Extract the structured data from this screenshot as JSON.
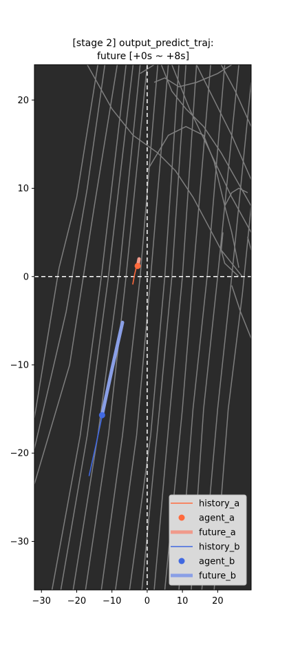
{
  "chart_data": {
    "type": "line",
    "title_line1": "[stage 2] output_predict_traj:",
    "title_line2": "future [+0s ~ +8s]",
    "xlim": [
      -32,
      29.5
    ],
    "ylim": [
      -35.5,
      24
    ],
    "xticks": [
      -30,
      -20,
      -10,
      0,
      10,
      20
    ],
    "yticks": [
      20,
      10,
      0,
      -10,
      -20,
      -30
    ],
    "background_color": "#2b2b2b",
    "lane_color": "#7f7f7f",
    "crosshair": {
      "x": 0,
      "y": 0,
      "color": "#ffffff"
    },
    "legend_position": "lower-right",
    "lanes": [
      [
        [
          -32,
          -16
        ],
        [
          -25,
          1
        ],
        [
          -20,
          9
        ],
        [
          -14,
          24
        ]
      ],
      [
        [
          -32,
          -19.5
        ],
        [
          -23,
          -4
        ],
        [
          -17,
          10
        ],
        [
          -12,
          24
        ]
      ],
      [
        [
          -32,
          -23.5
        ],
        [
          -22,
          -10
        ],
        [
          -15,
          8
        ],
        [
          -8.5,
          24
        ]
      ],
      [
        [
          -27,
          -35.5
        ],
        [
          -19,
          -18
        ],
        [
          -13,
          0
        ],
        [
          -6,
          24
        ]
      ],
      [
        [
          -24.5,
          -35.5
        ],
        [
          -17,
          -18
        ],
        [
          -11,
          0
        ],
        [
          -4,
          24
        ]
      ],
      [
        [
          -21,
          -35.5
        ],
        [
          -14,
          -18
        ],
        [
          -8,
          0
        ],
        [
          -2,
          24
        ]
      ],
      [
        [
          -17.5,
          -35.5
        ],
        [
          -11,
          -18
        ],
        [
          -6,
          0
        ],
        [
          0,
          24
        ]
      ],
      [
        [
          -13,
          -35.5
        ],
        [
          -7,
          -18
        ],
        [
          -2,
          0
        ],
        [
          3,
          24
        ]
      ],
      [
        [
          -9,
          -35.5
        ],
        [
          -3,
          -18
        ],
        [
          1,
          0
        ],
        [
          6,
          24
        ]
      ],
      [
        [
          -5,
          -35.5
        ],
        [
          1,
          -18
        ],
        [
          5,
          0
        ],
        [
          9,
          24
        ]
      ],
      [
        [
          -1.5,
          -35.5
        ],
        [
          3.5,
          -15
        ],
        [
          7,
          0
        ],
        [
          11,
          24
        ]
      ],
      [
        [
          2,
          -35.5
        ],
        [
          6.5,
          -15
        ],
        [
          10,
          0
        ],
        [
          14,
          24
        ]
      ],
      [
        [
          5,
          -35.5
        ],
        [
          10,
          -15
        ],
        [
          13,
          0
        ],
        [
          18,
          24
        ]
      ],
      [
        [
          9,
          -35.5
        ],
        [
          13,
          -15
        ],
        [
          17,
          0
        ],
        [
          22,
          24
        ]
      ],
      [
        [
          12.5,
          -35.5
        ],
        [
          16,
          -15
        ],
        [
          20,
          0
        ],
        [
          26,
          24
        ]
      ],
      [
        [
          15.5,
          -35.5
        ],
        [
          20,
          -15
        ],
        [
          24,
          0
        ],
        [
          29.5,
          22
        ]
      ],
      [
        [
          19,
          -35.5
        ],
        [
          23,
          -15
        ],
        [
          27,
          -2
        ],
        [
          29.5,
          8
        ]
      ],
      [
        [
          0,
          12
        ],
        [
          6,
          16
        ],
        [
          11,
          17
        ],
        [
          16,
          16
        ],
        [
          19,
          13
        ],
        [
          22,
          8
        ],
        [
          24,
          5
        ],
        [
          25,
          3
        ],
        [
          26,
          1
        ]
      ],
      [
        [
          -17,
          24
        ],
        [
          -10,
          19
        ],
        [
          -4,
          16
        ],
        [
          3,
          14
        ],
        [
          8,
          12
        ],
        [
          13,
          9
        ],
        [
          17,
          6
        ],
        [
          21,
          3
        ],
        [
          27,
          0
        ]
      ],
      [
        [
          -2,
          23
        ],
        [
          2,
          24
        ]
      ],
      [
        [
          2,
          22
        ],
        [
          5,
          22.5
        ],
        [
          9,
          21.5
        ],
        [
          14,
          22
        ],
        [
          20,
          23
        ],
        [
          24,
          24
        ]
      ],
      [
        [
          7,
          24
        ],
        [
          12,
          19
        ],
        [
          18,
          14
        ],
        [
          24,
          9
        ],
        [
          29.5,
          5
        ]
      ],
      [
        [
          14,
          24
        ],
        [
          19,
          20
        ],
        [
          24,
          16
        ],
        [
          29.5,
          11
        ]
      ],
      [
        [
          21,
          24
        ],
        [
          25,
          21
        ],
        [
          29.5,
          17
        ]
      ],
      [
        [
          4,
          24
        ],
        [
          7,
          21
        ],
        [
          11,
          19
        ],
        [
          16,
          17
        ],
        [
          21,
          14
        ],
        [
          29.5,
          8
        ]
      ],
      [
        [
          22,
          8
        ],
        [
          24,
          9.5
        ],
        [
          26,
          10
        ],
        [
          28.5,
          9.5
        ]
      ],
      [
        [
          21.5,
          5
        ],
        [
          21,
          3
        ],
        [
          22,
          1.5
        ],
        [
          26,
          0
        ]
      ],
      [
        [
          24,
          -1
        ],
        [
          26.5,
          -4
        ],
        [
          29.5,
          -7
        ]
      ],
      [
        [
          28.5,
          4.5
        ],
        [
          29.5,
          3
        ]
      ]
    ],
    "series": [
      {
        "name": "history_a",
        "kind": "history",
        "color": "#ff6a3d",
        "points": [
          [
            -4.1,
            -0.9
          ],
          [
            -3.6,
            0.2
          ],
          [
            -3.0,
            1.2
          ]
        ]
      },
      {
        "name": "agent_a",
        "kind": "agent",
        "color": "#ff6a3d",
        "point": [
          -2.7,
          1.2
        ]
      },
      {
        "name": "future_a",
        "kind": "future",
        "color": "#f09a8b",
        "points": [
          [
            -2.7,
            1.2
          ],
          [
            -2.5,
            1.6
          ],
          [
            -2.3,
            2.0
          ]
        ]
      },
      {
        "name": "history_b",
        "kind": "history",
        "color": "#4169e1",
        "points": [
          [
            -16.5,
            -22.6
          ],
          [
            -14.6,
            -19.2
          ],
          [
            -12.8,
            -15.8
          ]
        ]
      },
      {
        "name": "agent_b",
        "kind": "agent",
        "color": "#4169e1",
        "point": [
          -12.8,
          -15.7
        ]
      },
      {
        "name": "future_b",
        "kind": "future",
        "color": "#8a9fe6",
        "points": [
          [
            -12.8,
            -15.7
          ],
          [
            -10.0,
            -10.5
          ],
          [
            -7.0,
            -5.2
          ]
        ]
      }
    ]
  }
}
